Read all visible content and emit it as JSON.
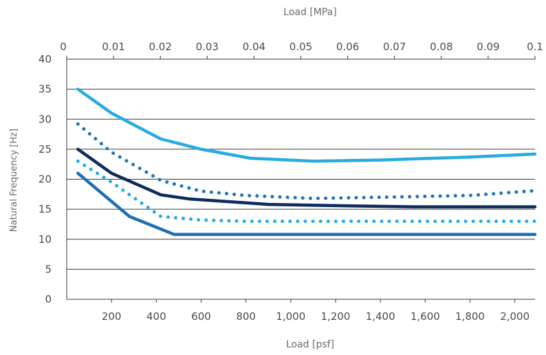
{
  "chart_data": {
    "type": "line",
    "xlabel": "Load [psf]",
    "x2label": "Load [MPa]",
    "ylabel": "Natural Frequency [Hz]",
    "xlim": [
      0,
      2090
    ],
    "x2lim": [
      0,
      0.1
    ],
    "ylim": [
      0,
      40
    ],
    "x_ticks": [
      200,
      400,
      600,
      800,
      1000,
      1200,
      1400,
      1600,
      1800,
      2000
    ],
    "x_tick_labels": [
      "200",
      "400",
      "600",
      "800",
      "1,000",
      "1,200",
      "1,400",
      "1,600",
      "1,800",
      "2,000"
    ],
    "x2_ticks": [
      0,
      0.01,
      0.02,
      0.03,
      0.04,
      0.05,
      0.06,
      0.07,
      0.08,
      0.09,
      0.1
    ],
    "x2_tick_labels": [
      "0",
      "0.01",
      "0.02",
      "0.03",
      "0.04",
      "0.05",
      "0.06",
      "0.07",
      "0.08",
      "0.09",
      "0.1"
    ],
    "y_ticks": [
      0,
      5,
      10,
      15,
      20,
      25,
      30,
      35,
      40
    ],
    "y_tick_labels": [
      "0",
      "5",
      "10",
      "15",
      "20",
      "25",
      "30",
      "35",
      "40"
    ],
    "grid": "horizontal",
    "series": [
      {
        "color": "#29abe2",
        "style": "solid",
        "x": [
          50,
          200,
          420,
          600,
          820,
          1100,
          1400,
          1800,
          2090
        ],
        "y": [
          35,
          31,
          26.7,
          25,
          23.5,
          23,
          23.2,
          23.7,
          24.2
        ]
      },
      {
        "color": "#1f74b8",
        "style": "dotted",
        "x": [
          50,
          200,
          420,
          600,
          800,
          1100,
          1400,
          1800,
          2090
        ],
        "y": [
          29.2,
          24.5,
          19.8,
          18,
          17.3,
          16.8,
          17,
          17.3,
          18.1
        ]
      },
      {
        "color": "#0d2b5c",
        "style": "solid",
        "x": [
          50,
          200,
          420,
          550,
          900,
          1200,
          1550,
          1800,
          2090
        ],
        "y": [
          25,
          21,
          17.4,
          16.7,
          15.8,
          15.6,
          15.4,
          15.4,
          15.4
        ]
      },
      {
        "color": "#29abe2",
        "style": "dotted",
        "x": [
          50,
          200,
          420,
          600,
          800,
          1200,
          1600,
          2090
        ],
        "y": [
          23,
          19.5,
          13.8,
          13.2,
          13,
          13,
          13,
          13
        ]
      },
      {
        "color": "#1f6fb0",
        "style": "solid",
        "x": [
          50,
          280,
          480,
          600,
          1000,
          1400,
          1800,
          2090
        ],
        "y": [
          21,
          13.8,
          10.8,
          10.8,
          10.8,
          10.8,
          10.8,
          10.8
        ]
      }
    ]
  }
}
